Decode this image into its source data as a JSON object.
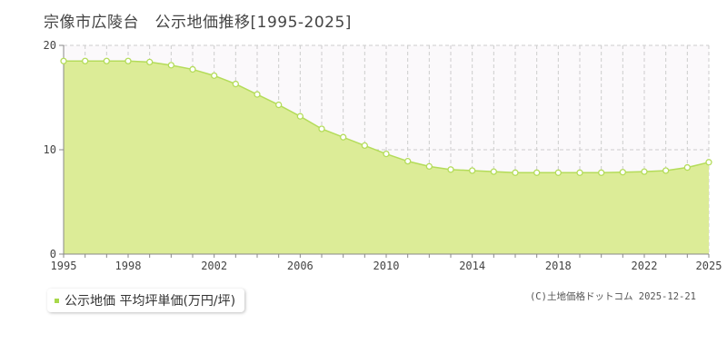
{
  "title": "宗像市広陵台　公示地価推移[1995-2025]",
  "legend": {
    "label": "公示地価 平均坪単価(万円/坪)",
    "color": "#a8d84a"
  },
  "copyright": "(C)土地価格ドットコム 2025-12-21",
  "colors": {
    "area_fill": "#dcec97",
    "line": "#b4dc5a",
    "marker_stroke": "#b4dc5a",
    "marker_fill": "#ffffff",
    "grid": "#cccccc",
    "axis": "#888888",
    "above_fill": "#fbf9fb"
  },
  "chart_data": {
    "type": "area",
    "title": "宗像市広陵台　公示地価推移[1995-2025]",
    "xlabel": "",
    "ylabel": "",
    "x": [
      1995,
      1996,
      1997,
      1998,
      1999,
      2000,
      2001,
      2002,
      2003,
      2004,
      2005,
      2006,
      2007,
      2008,
      2009,
      2010,
      2011,
      2012,
      2013,
      2014,
      2015,
      2016,
      2017,
      2018,
      2019,
      2020,
      2021,
      2022,
      2023,
      2024,
      2025
    ],
    "series": [
      {
        "name": "公示地価 平均坪単価(万円/坪)",
        "values": [
          18.5,
          18.5,
          18.5,
          18.5,
          18.4,
          18.1,
          17.7,
          17.1,
          16.3,
          15.3,
          14.3,
          13.2,
          12.0,
          11.2,
          10.4,
          9.6,
          8.9,
          8.4,
          8.1,
          8.0,
          7.9,
          7.8,
          7.8,
          7.8,
          7.8,
          7.8,
          7.85,
          7.9,
          8.0,
          8.3,
          8.8
        ]
      }
    ],
    "xlim": [
      1995,
      2025
    ],
    "ylim": [
      0,
      20
    ],
    "x_ticks": [
      1995,
      1998,
      2002,
      2006,
      2010,
      2014,
      2018,
      2022,
      2025
    ],
    "y_ticks": [
      0,
      10,
      20
    ],
    "grid": true,
    "legend_position": "bottom-left"
  }
}
